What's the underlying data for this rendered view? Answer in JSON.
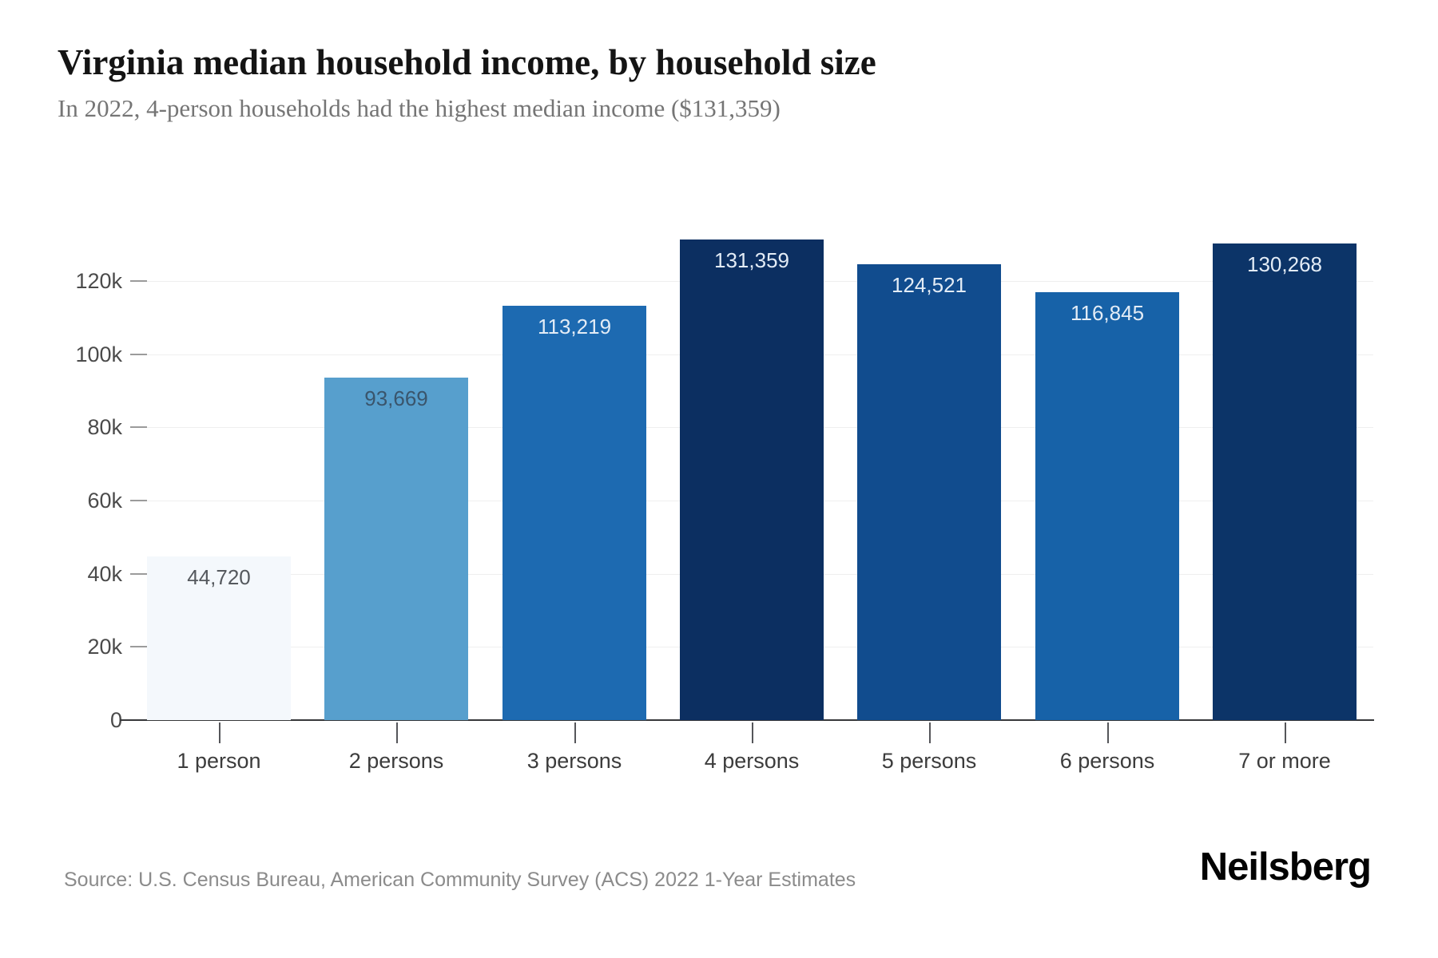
{
  "header": {
    "title": "Virginia median household income, by household size",
    "subtitle": "In 2022, 4-person households had the highest median income ($131,359)"
  },
  "footer": {
    "source": "Source: U.S. Census Bureau, American Community Survey (ACS) 2022 1-Year Estimates",
    "brand": "Neilsberg"
  },
  "chart_data": {
    "type": "bar",
    "title": "Virginia median household income, by household size",
    "subtitle": "In 2022, 4-person households had the highest median income ($131,359)",
    "categories": [
      "1 person",
      "2 persons",
      "3 persons",
      "4 persons",
      "5 persons",
      "6 persons",
      "7 or more"
    ],
    "values": [
      44720,
      93669,
      113219,
      131359,
      124521,
      116845,
      130268
    ],
    "value_labels": [
      "44,720",
      "93,669",
      "113,219",
      "131,359",
      "124,521",
      "116,845",
      "130,268"
    ],
    "bar_colors": [
      "#f4f8fc",
      "#579fcd",
      "#1d6ab1",
      "#0c2f61",
      "#114c8e",
      "#1762a8",
      "#0c3468"
    ],
    "value_label_colors": [
      "#55595e",
      "#3a556c",
      "#e3ecf6",
      "#e3ecf6",
      "#e3ecf6",
      "#e3ecf6",
      "#e3ecf6"
    ],
    "xlabel": "",
    "ylabel": "",
    "ylim": [
      0,
      131359
    ],
    "yticks": [
      0,
      20000,
      40000,
      60000,
      80000,
      100000,
      120000
    ],
    "ytick_labels": [
      "0",
      "20k",
      "40k",
      "60k",
      "80k",
      "100k",
      "120k"
    ],
    "grid": true,
    "legend": false
  }
}
